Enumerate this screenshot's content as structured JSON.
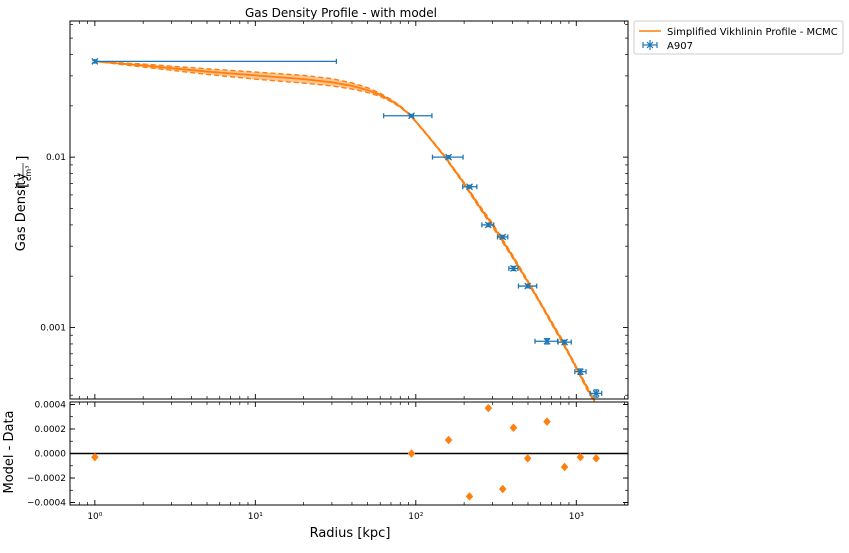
{
  "chart_data": [
    {
      "type": "scatter",
      "title": "Gas Density Profile - with model",
      "xlabel": "Radius [kpc]",
      "ylabel": "Gas Density",
      "ylabel_unit": "1/cm³",
      "xscale": "log",
      "yscale": "log",
      "xlim": [
        0.7,
        2100
      ],
      "ylim": [
        0.00038,
        0.063
      ],
      "x_ticks": [
        1,
        10,
        100,
        1000
      ],
      "x_tick_labels": [
        "10⁰",
        "10¹",
        "10²",
        "10³"
      ],
      "y_ticks": [
        0.01,
        0.001
      ],
      "y_tick_labels": [
        "0.01",
        "0.001"
      ],
      "legend_position": "outside-top-right",
      "legend": [
        {
          "label": "Simplified Vikhlinin Profile - MCMC",
          "kind": "line",
          "color": "#ff7f0e"
        },
        {
          "label": "A907",
          "kind": "errorbar",
          "color": "#1f77b4"
        }
      ],
      "series": [
        {
          "name": "A907",
          "color": "#1f77b4",
          "points": [
            {
              "x": 1.0,
              "y": 0.0365,
              "xlo": 1.0,
              "xhi": 32,
              "yerr": 0.0005
            },
            {
              "x": 94,
              "y": 0.0175,
              "xlo": 63,
              "xhi": 126,
              "yerr": 0.0003
            },
            {
              "x": 160,
              "y": 0.01,
              "xlo": 127,
              "xhi": 197,
              "yerr": 0.0002
            },
            {
              "x": 216,
              "y": 0.0067,
              "xlo": 196,
              "xhi": 240,
              "yerr": 0.00013
            },
            {
              "x": 283,
              "y": 0.004,
              "xlo": 258,
              "xhi": 306,
              "yerr": 9e-05
            },
            {
              "x": 348,
              "y": 0.0034,
              "xlo": 323,
              "xhi": 374,
              "yerr": 7e-05
            },
            {
              "x": 406,
              "y": 0.00222,
              "xlo": 380,
              "xhi": 433,
              "yerr": 6e-05
            },
            {
              "x": 498,
              "y": 0.00175,
              "xlo": 436,
              "xhi": 567,
              "yerr": 4e-05
            },
            {
              "x": 657,
              "y": 0.00083,
              "xlo": 553,
              "xhi": 765,
              "yerr": 3e-05
            },
            {
              "x": 845,
              "y": 0.00082,
              "xlo": 770,
              "xhi": 930,
              "yerr": 2e-05
            },
            {
              "x": 1060,
              "y": 0.00055,
              "xlo": 980,
              "xhi": 1150,
              "yerr": 2e-05
            },
            {
              "x": 1330,
              "y": 0.00041,
              "xlo": 1220,
              "xhi": 1440,
              "yerr": 2e-05
            }
          ]
        },
        {
          "name": "Simplified Vikhlinin Profile - MCMC",
          "color": "#ff7f0e",
          "x": [
            1,
            2,
            5,
            10,
            20,
            30,
            40,
            50,
            60,
            70,
            80,
            90,
            100,
            120,
            150,
            200,
            250,
            300,
            400,
            500,
            600,
            700,
            800,
            900,
            1000,
            1100,
            1200,
            1300
          ],
          "y": [
            0.0365,
            0.0345,
            0.0318,
            0.0302,
            0.0287,
            0.0275,
            0.0262,
            0.0248,
            0.0232,
            0.0215,
            0.0198,
            0.018,
            0.0162,
            0.0132,
            0.0102,
            0.007,
            0.0051,
            0.004,
            0.00262,
            0.00185,
            0.00138,
            0.00107,
            0.00086,
            0.0007,
            0.00058,
            0.00049,
            0.00042,
            0.00037
          ],
          "band_lower": [
            0.0365,
            0.0338,
            0.0306,
            0.0287,
            0.0272,
            0.0262,
            0.0251,
            0.024,
            0.0227,
            0.0212,
            0.0196,
            0.0179,
            0.0161,
            0.0131,
            0.0101,
            0.0069,
            0.005,
            0.0039,
            0.00257,
            0.00182,
            0.00136,
            0.00105,
            0.00084,
            0.00069,
            0.00057,
            0.00048,
            0.00041,
            0.000365
          ],
          "band_upper": [
            0.0365,
            0.0352,
            0.033,
            0.0316,
            0.0302,
            0.0289,
            0.0273,
            0.0256,
            0.0237,
            0.0218,
            0.02,
            0.0181,
            0.0163,
            0.0133,
            0.0103,
            0.0071,
            0.0052,
            0.0041,
            0.00267,
            0.00188,
            0.0014,
            0.00109,
            0.00088,
            0.00071,
            0.00059,
            0.0005,
            0.00043,
            0.000375
          ]
        }
      ]
    },
    {
      "type": "scatter",
      "title": "",
      "xlabel": "Radius [kpc]",
      "ylabel": "Model - Data",
      "xscale": "log",
      "xlim": [
        0.7,
        2100
      ],
      "ylim": [
        -0.00042,
        0.00042
      ],
      "y_ticks": [
        0.0004,
        0.0002,
        0.0,
        -0.0002,
        -0.0004
      ],
      "y_tick_labels": [
        "0.0004",
        "0.0002",
        "0.0000",
        "−0.0002",
        "−0.0004"
      ],
      "zero_line": true,
      "series": [
        {
          "name": "",
          "color": "#ff7f0e",
          "marker": "diamond",
          "x": [
            1.0,
            94,
            160,
            216,
            283,
            348,
            406,
            498,
            657,
            845,
            1060,
            1330
          ],
          "y": [
            -3e-05,
            0.0,
            0.00011,
            -0.00035,
            0.00037,
            -0.00029,
            0.00021,
            -4e-05,
            0.00026,
            -0.00011,
            -3e-05,
            -4e-05
          ]
        }
      ]
    }
  ]
}
